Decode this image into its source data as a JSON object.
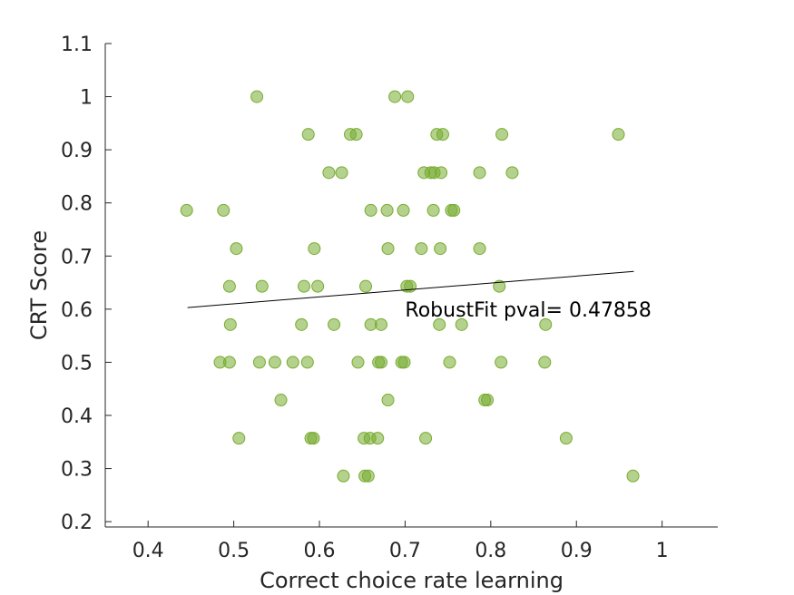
{
  "chart_data": {
    "type": "scatter",
    "xlabel": "Correct choice rate learning",
    "ylabel": "CRT Score",
    "xlim": [
      0.35,
      1.065
    ],
    "ylim": [
      0.19,
      1.1
    ],
    "xticks": [
      0.4,
      0.5,
      0.6,
      0.7,
      0.8,
      0.9,
      1
    ],
    "xtick_labels": [
      "0.4",
      "0.5",
      "0.6",
      "0.7",
      "0.8",
      "0.9",
      "1"
    ],
    "yticks": [
      0.2,
      0.3,
      0.4,
      0.5,
      0.6,
      0.7,
      0.8,
      0.9,
      1,
      1.1
    ],
    "ytick_labels": [
      "0.2",
      "0.3",
      "0.4",
      "0.5",
      "0.6",
      "0.7",
      "0.8",
      "0.9",
      "1",
      "1.1"
    ],
    "grid": false,
    "marker_color": "#77AC30",
    "fit_line": {
      "x": [
        0.446,
        0.967
      ],
      "y": [
        0.603,
        0.671
      ],
      "color": "#000000"
    },
    "annotation": {
      "text": "RobustFit pval= 0.47858",
      "x": 0.7,
      "y": 0.6
    },
    "points": [
      {
        "x": 0.527,
        "y": 1.0
      },
      {
        "x": 0.688,
        "y": 1.0
      },
      {
        "x": 0.703,
        "y": 1.0
      },
      {
        "x": 0.587,
        "y": 0.929
      },
      {
        "x": 0.636,
        "y": 0.929
      },
      {
        "x": 0.643,
        "y": 0.929
      },
      {
        "x": 0.737,
        "y": 0.929
      },
      {
        "x": 0.744,
        "y": 0.929
      },
      {
        "x": 0.813,
        "y": 0.929
      },
      {
        "x": 0.949,
        "y": 0.929
      },
      {
        "x": 0.611,
        "y": 0.857
      },
      {
        "x": 0.626,
        "y": 0.857
      },
      {
        "x": 0.722,
        "y": 0.857
      },
      {
        "x": 0.73,
        "y": 0.857
      },
      {
        "x": 0.734,
        "y": 0.857
      },
      {
        "x": 0.742,
        "y": 0.857
      },
      {
        "x": 0.787,
        "y": 0.857
      },
      {
        "x": 0.825,
        "y": 0.857
      },
      {
        "x": 0.445,
        "y": 0.786
      },
      {
        "x": 0.488,
        "y": 0.786
      },
      {
        "x": 0.66,
        "y": 0.786
      },
      {
        "x": 0.679,
        "y": 0.786
      },
      {
        "x": 0.698,
        "y": 0.786
      },
      {
        "x": 0.733,
        "y": 0.786
      },
      {
        "x": 0.754,
        "y": 0.786
      },
      {
        "x": 0.757,
        "y": 0.786
      },
      {
        "x": 0.503,
        "y": 0.714
      },
      {
        "x": 0.594,
        "y": 0.714
      },
      {
        "x": 0.68,
        "y": 0.714
      },
      {
        "x": 0.719,
        "y": 0.714
      },
      {
        "x": 0.741,
        "y": 0.714
      },
      {
        "x": 0.787,
        "y": 0.714
      },
      {
        "x": 0.495,
        "y": 0.643
      },
      {
        "x": 0.533,
        "y": 0.643
      },
      {
        "x": 0.582,
        "y": 0.643
      },
      {
        "x": 0.598,
        "y": 0.643
      },
      {
        "x": 0.654,
        "y": 0.643
      },
      {
        "x": 0.702,
        "y": 0.643
      },
      {
        "x": 0.706,
        "y": 0.643
      },
      {
        "x": 0.81,
        "y": 0.643
      },
      {
        "x": 0.496,
        "y": 0.571
      },
      {
        "x": 0.579,
        "y": 0.571
      },
      {
        "x": 0.617,
        "y": 0.571
      },
      {
        "x": 0.66,
        "y": 0.571
      },
      {
        "x": 0.672,
        "y": 0.571
      },
      {
        "x": 0.74,
        "y": 0.571
      },
      {
        "x": 0.766,
        "y": 0.571
      },
      {
        "x": 0.864,
        "y": 0.571
      },
      {
        "x": 0.484,
        "y": 0.5
      },
      {
        "x": 0.495,
        "y": 0.5
      },
      {
        "x": 0.53,
        "y": 0.5
      },
      {
        "x": 0.548,
        "y": 0.5
      },
      {
        "x": 0.569,
        "y": 0.5
      },
      {
        "x": 0.586,
        "y": 0.5
      },
      {
        "x": 0.645,
        "y": 0.5
      },
      {
        "x": 0.669,
        "y": 0.5
      },
      {
        "x": 0.672,
        "y": 0.5
      },
      {
        "x": 0.696,
        "y": 0.5
      },
      {
        "x": 0.699,
        "y": 0.5
      },
      {
        "x": 0.752,
        "y": 0.5
      },
      {
        "x": 0.812,
        "y": 0.5
      },
      {
        "x": 0.863,
        "y": 0.5
      },
      {
        "x": 0.555,
        "y": 0.429
      },
      {
        "x": 0.68,
        "y": 0.429
      },
      {
        "x": 0.793,
        "y": 0.429
      },
      {
        "x": 0.796,
        "y": 0.429
      },
      {
        "x": 0.506,
        "y": 0.357
      },
      {
        "x": 0.59,
        "y": 0.357
      },
      {
        "x": 0.593,
        "y": 0.357
      },
      {
        "x": 0.652,
        "y": 0.357
      },
      {
        "x": 0.659,
        "y": 0.357
      },
      {
        "x": 0.668,
        "y": 0.357
      },
      {
        "x": 0.724,
        "y": 0.357
      },
      {
        "x": 0.888,
        "y": 0.357
      },
      {
        "x": 0.628,
        "y": 0.286
      },
      {
        "x": 0.653,
        "y": 0.286
      },
      {
        "x": 0.657,
        "y": 0.286
      },
      {
        "x": 0.966,
        "y": 0.286
      }
    ]
  }
}
